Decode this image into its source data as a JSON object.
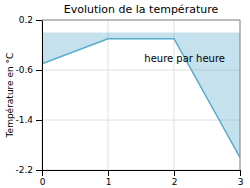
{
  "chart_data": {
    "type": "area",
    "title": "Evolution de la température",
    "ylabel": "Température en °C",
    "annotations": [
      {
        "text": "heure par heure",
        "x": 1.55,
        "y": -0.35
      }
    ],
    "x": [
      0,
      1,
      2,
      3
    ],
    "values": [
      -0.5,
      -0.1,
      -0.1,
      -2.0
    ],
    "color": "#55aacc",
    "xlim": [
      0,
      3
    ],
    "ylim": [
      -2.2,
      0.2
    ],
    "xticks": [
      0,
      1,
      2,
      3
    ],
    "yticks": [
      0.2,
      -0.6,
      -1.4,
      -2.2
    ],
    "grid": true
  }
}
